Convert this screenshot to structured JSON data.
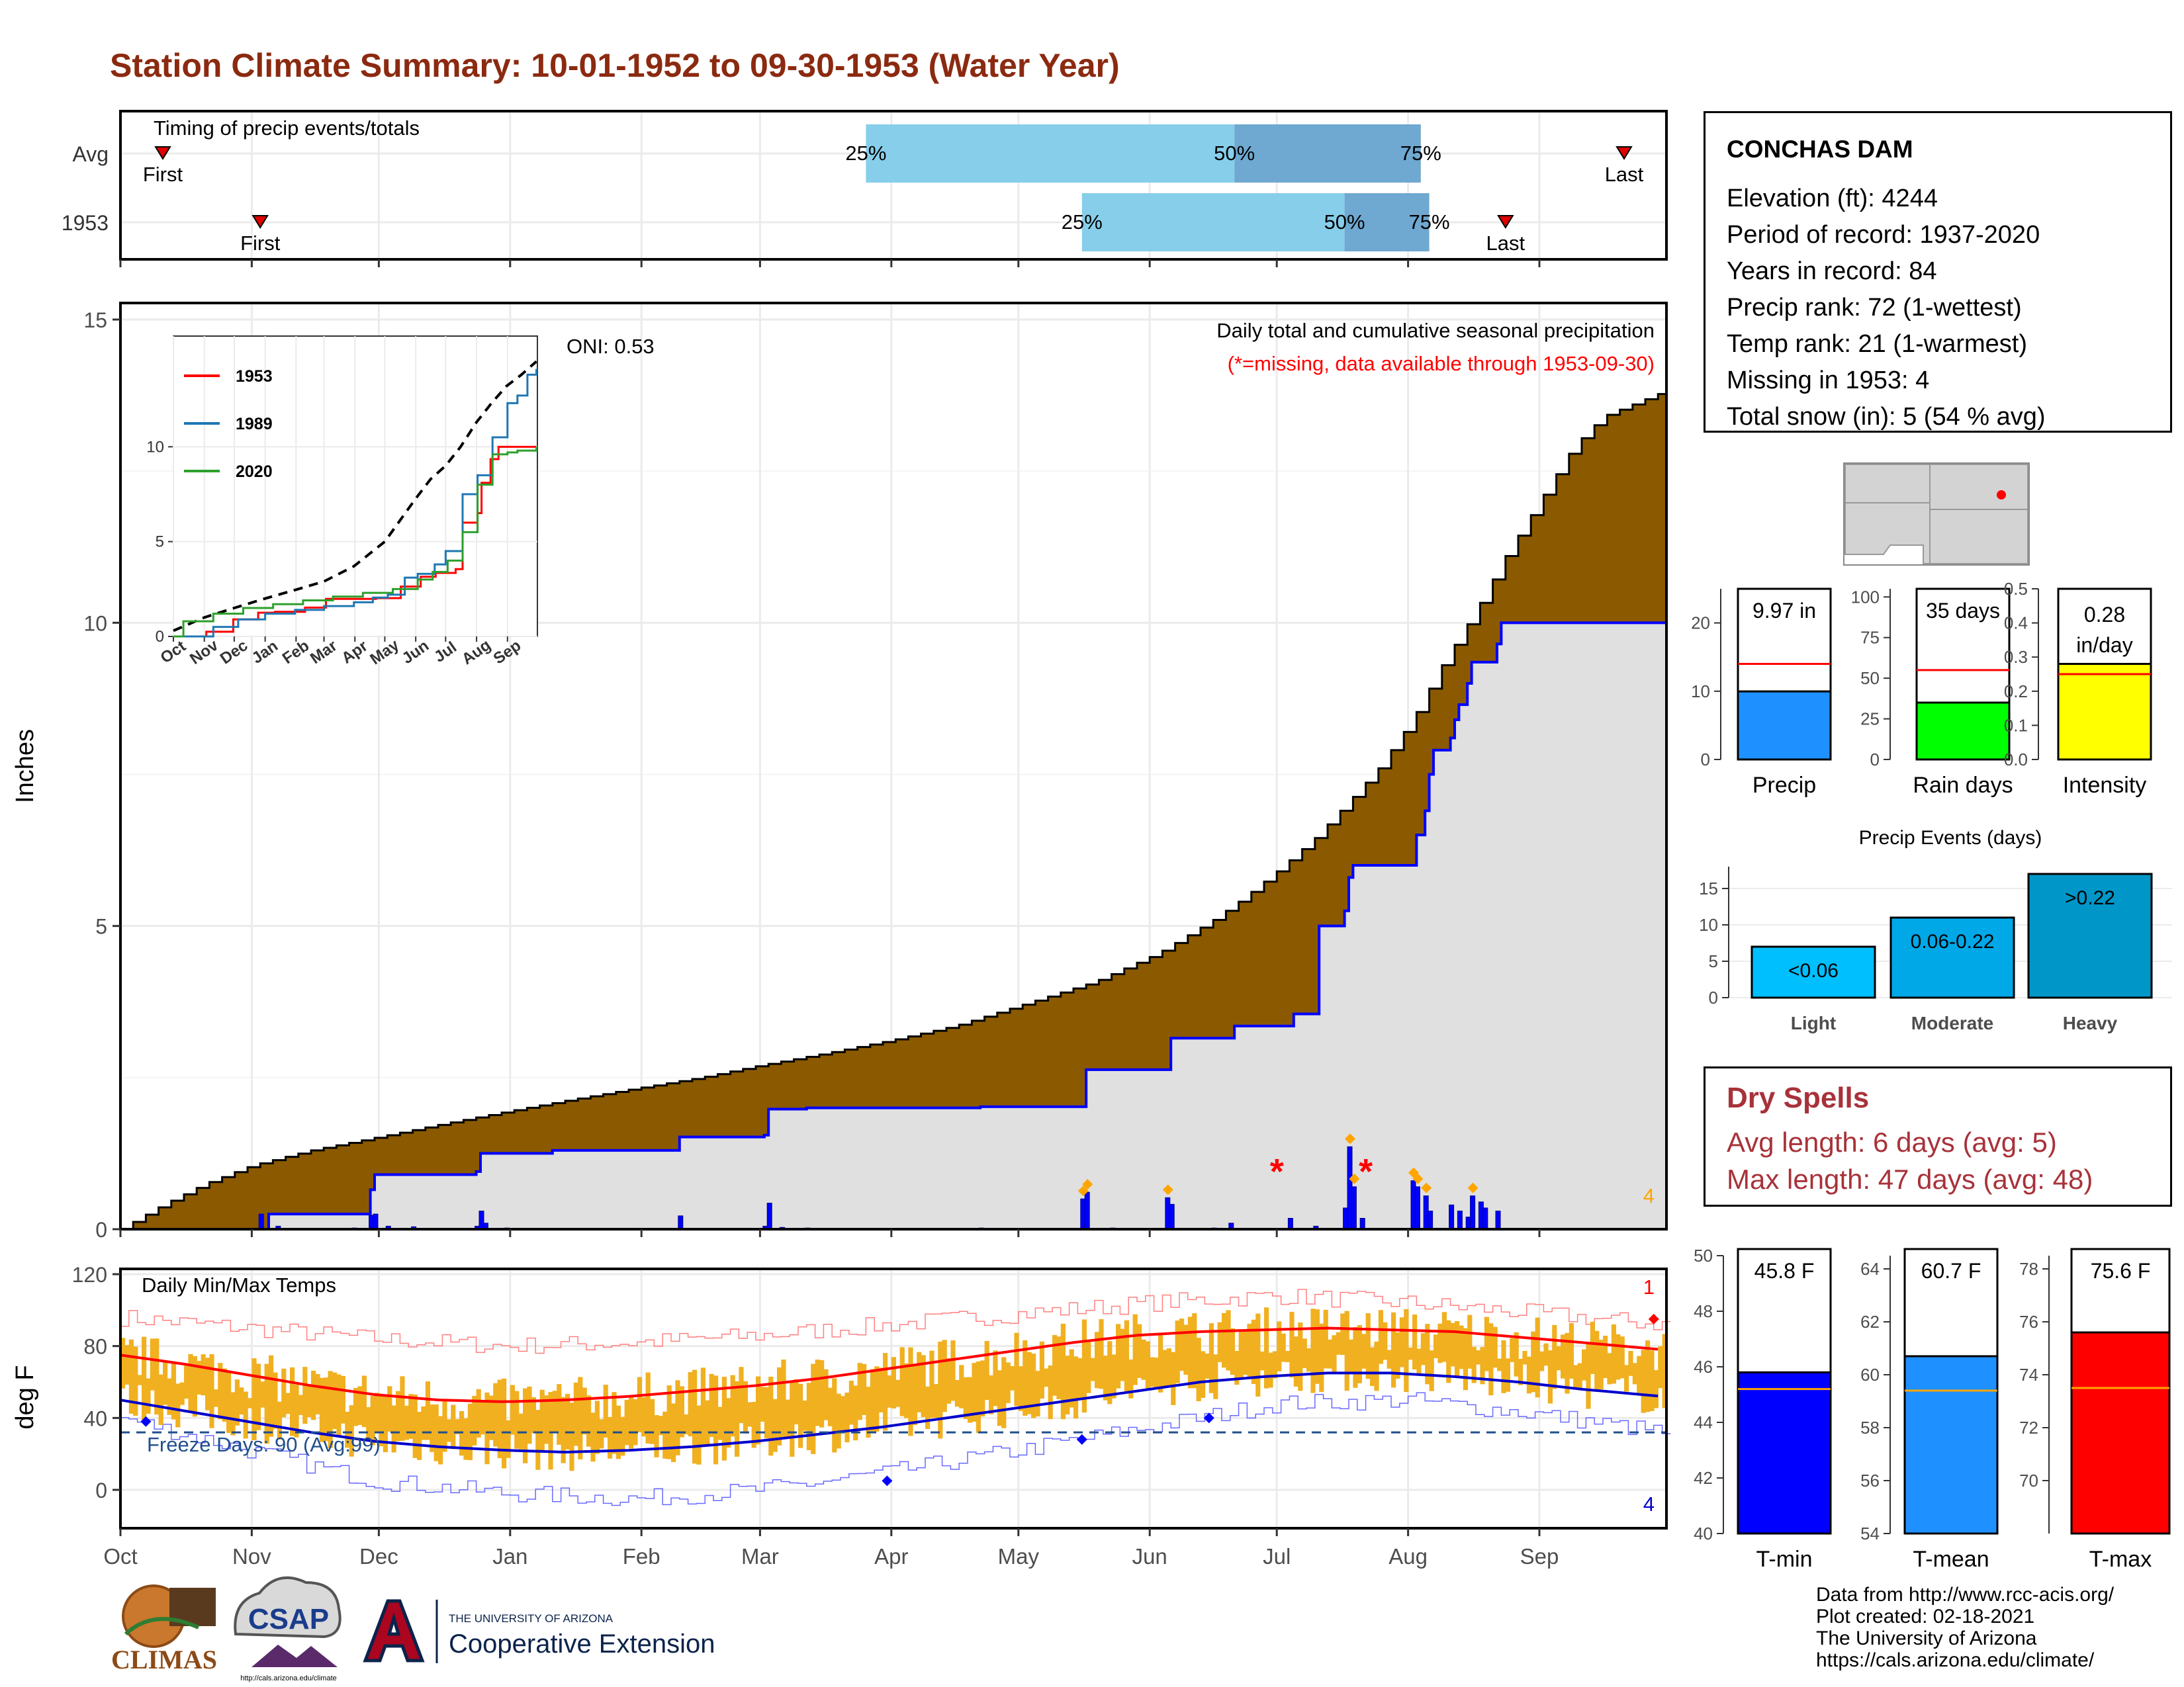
{
  "title": "Station Climate Summary: 10-01-1952 to 09-30-1953 (Water Year)",
  "months": [
    "Oct",
    "Nov",
    "Dec",
    "Jan",
    "Feb",
    "Mar",
    "Apr",
    "May",
    "Jun",
    "Jul",
    "Aug",
    "Sep"
  ],
  "timing": {
    "label": "Timing of precip events/totals",
    "rows": [
      {
        "name": "Avg",
        "first_day": 10,
        "last_day": 355,
        "p25": 176,
        "p50": 263,
        "p75": 307,
        "labels": {
          "first": "First",
          "last": "Last",
          "p25": "25%",
          "p50": "50%",
          "p75": "75%"
        }
      },
      {
        "name": "1953",
        "first_day": 33,
        "last_day": 327,
        "p25": 227,
        "p50": 289,
        "p75": 309,
        "labels": {
          "first": "First",
          "last": "Last",
          "p25": "25%",
          "p50": "50%",
          "p75": "75%"
        }
      }
    ]
  },
  "station": {
    "name": "CONCHAS DAM",
    "lines": [
      "Elevation (ft): 4244",
      "Period of record: 1937-2020",
      "Years in record: 84",
      "Precip rank: 72 (1-wettest)",
      "Temp rank: 21 (1-warmest)",
      "Missing in 1953: 4",
      "Total snow (in): 5 (54 % avg)"
    ]
  },
  "dry_spells": {
    "title": "Dry Spells",
    "avg_length": "Avg length: 6 days (avg: 5)",
    "max_length": "Max length: 47 days (avg: 48)"
  },
  "colors": {
    "title": "#8b2a10",
    "avg_precip": "#8b5a00",
    "obs_precip_fill": "#e0e0e0",
    "obs_precip_line": "#0000ff",
    "quartile_light": "#87ceeb",
    "quartile_dark": "#6fa8d0",
    "temp_bars": "#f0b020",
    "tmax_avg": "#ff0000",
    "tmin_avg": "#0000cc",
    "dry_spells": "#a8323a"
  },
  "chart_data": [
    {
      "id": "precip-main",
      "type": "area",
      "title": "Daily total and cumulative seasonal precipitation",
      "subtitle": "(*=missing, data available through 1953-09-30)",
      "annotation": "ONI: 0.53",
      "corner_count": "4",
      "ylabel": "Inches",
      "ylim": [
        0,
        15
      ],
      "yticks": [
        0,
        5,
        10,
        15
      ],
      "grid": true,
      "series": [
        {
          "name": "average cumulative",
          "x": [
            0,
            10,
            20,
            31,
            45,
            61,
            75,
            92,
            106,
            120,
            137,
            151,
            165,
            181,
            197,
            212,
            230,
            245,
            258,
            265,
            273,
            282,
            290,
            297,
            305,
            312,
            320,
            327,
            335,
            343,
            350,
            364
          ],
          "y": [
            0,
            0.4,
            0.75,
            1.05,
            1.3,
            1.52,
            1.72,
            1.95,
            2.13,
            2.3,
            2.5,
            2.7,
            2.88,
            3.1,
            3.35,
            3.68,
            4.08,
            4.55,
            5.1,
            5.45,
            5.9,
            6.45,
            7.05,
            7.6,
            8.4,
            9.3,
            10.2,
            11.1,
            12.0,
            12.9,
            13.4,
            13.8
          ]
        },
        {
          "name": "1953 cumulative",
          "x": [
            0,
            33,
            35,
            55,
            59,
            60,
            84,
            85,
            101,
            102,
            132,
            152,
            153,
            162,
            203,
            227,
            228,
            247,
            248,
            262,
            263,
            276,
            277,
            282,
            283,
            289,
            290,
            291,
            305,
            306,
            308,
            309,
            310,
            314,
            315,
            316,
            318,
            319,
            325,
            326,
            364
          ],
          "y": [
            0,
            0,
            0.25,
            0.25,
            0.65,
            0.9,
            0.95,
            1.25,
            1.25,
            1.3,
            1.52,
            1.55,
            1.98,
            2.0,
            2.02,
            2.02,
            2.63,
            2.63,
            3.15,
            3.15,
            3.35,
            3.35,
            3.55,
            3.55,
            5.0,
            5.25,
            5.8,
            6.0,
            6.0,
            6.5,
            6.9,
            7.5,
            7.9,
            8.1,
            8.4,
            8.65,
            9.0,
            9.35,
            9.65,
            10.0,
            10.0
          ]
        }
      ],
      "daily_precip": [
        {
          "day": 33,
          "in": 0.25
        },
        {
          "day": 37,
          "in": 0.05
        },
        {
          "day": 55,
          "in": 0.02
        },
        {
          "day": 59,
          "in": 0.23
        },
        {
          "day": 60,
          "in": 0.25
        },
        {
          "day": 63,
          "in": 0.05
        },
        {
          "day": 69,
          "in": 0.04
        },
        {
          "day": 84,
          "in": 0.05
        },
        {
          "day": 85,
          "in": 0.3
        },
        {
          "day": 86,
          "in": 0.1
        },
        {
          "day": 91,
          "in": 0.02
        },
        {
          "day": 132,
          "in": 0.22
        },
        {
          "day": 152,
          "in": 0.05
        },
        {
          "day": 153,
          "in": 0.43
        },
        {
          "day": 156,
          "in": 0.03
        },
        {
          "day": 162,
          "in": 0.02
        },
        {
          "day": 203,
          "in": 0.02
        },
        {
          "day": 227,
          "in": 0.5
        },
        {
          "day": 228,
          "in": 0.61
        },
        {
          "day": 234,
          "in": 0.02
        },
        {
          "day": 247,
          "in": 0.52
        },
        {
          "day": 248,
          "in": 0.41
        },
        {
          "day": 258,
          "in": 0.02
        },
        {
          "day": 262,
          "in": 0.1
        },
        {
          "day": 276,
          "in": 0.18
        },
        {
          "day": 282,
          "in": 0.05
        },
        {
          "day": 289,
          "in": 0.35
        },
        {
          "day": 290,
          "in": 1.36
        },
        {
          "day": 291,
          "in": 0.7
        },
        {
          "day": 293,
          "in": 0.18
        },
        {
          "day": 305,
          "in": 0.8
        },
        {
          "day": 306,
          "in": 0.7
        },
        {
          "day": 308,
          "in": 0.55
        },
        {
          "day": 309,
          "in": 0.3
        },
        {
          "day": 314,
          "in": 0.4
        },
        {
          "day": 316,
          "in": 0.3
        },
        {
          "day": 318,
          "in": 0.2
        },
        {
          "day": 319,
          "in": 0.55
        },
        {
          "day": 321,
          "in": 0.45
        },
        {
          "day": 322,
          "in": 0.35
        },
        {
          "day": 325,
          "in": 0.3
        }
      ],
      "missing_days": [
        273,
        294
      ]
    },
    {
      "id": "precip-inset",
      "type": "line",
      "ylim": [
        0,
        15
      ],
      "yticks": [
        0,
        5,
        10
      ],
      "xticks": [
        "Oct",
        "Nov",
        "Dec",
        "Jan",
        "Feb",
        "Mar",
        "Apr",
        "May",
        "Jun",
        "Jul",
        "Aug",
        "Sep"
      ],
      "series": [
        {
          "name": "average",
          "style": "dashed",
          "color": "#000000",
          "x": [
            0,
            31,
            61,
            92,
            122,
            151,
            181,
            212,
            242,
            258,
            273,
            288,
            304,
            319,
            334,
            349,
            364
          ],
          "y": [
            0.3,
            1.0,
            1.5,
            2.0,
            2.45,
            2.9,
            3.7,
            5.0,
            7.2,
            8.3,
            9.0,
            10.0,
            11.3,
            12.3,
            13.2,
            13.8,
            14.5
          ]
        },
        {
          "name": "1953",
          "color": "#ff0000",
          "x": [
            0,
            33,
            60,
            85,
            102,
            132,
            153,
            203,
            228,
            248,
            263,
            283,
            290,
            305,
            309,
            318,
            326,
            364
          ],
          "y": [
            0,
            0.25,
            0.9,
            1.25,
            1.3,
            1.52,
            1.98,
            2.02,
            2.63,
            3.15,
            3.35,
            3.55,
            6.0,
            6.5,
            8.1,
            9.35,
            10.0,
            10.0
          ]
        },
        {
          "name": "1989",
          "color": "#1f77b4",
          "x": [
            0,
            40,
            65,
            92,
            122,
            151,
            181,
            200,
            215,
            232,
            245,
            262,
            273,
            290,
            305,
            320,
            335,
            345,
            355,
            364
          ],
          "y": [
            0,
            0.5,
            0.9,
            1.2,
            1.4,
            1.6,
            1.8,
            2.05,
            2.2,
            3.1,
            3.3,
            3.8,
            4.5,
            7.5,
            8.5,
            10.5,
            12.3,
            12.7,
            13.8,
            14.1
          ]
        },
        {
          "name": "2020",
          "color": "#2ca02c",
          "x": [
            0,
            10,
            40,
            70,
            100,
            130,
            160,
            190,
            220,
            245,
            260,
            275,
            290,
            305,
            320,
            335,
            345,
            364
          ],
          "y": [
            0,
            0.8,
            1.2,
            1.5,
            1.7,
            1.9,
            2.1,
            2.3,
            2.5,
            3.0,
            3.4,
            4.0,
            5.5,
            8.0,
            9.6,
            9.7,
            9.8,
            10.0
          ]
        }
      ]
    },
    {
      "id": "temps",
      "type": "bar",
      "title": "Daily Min/Max Temps",
      "ylabel": "deg F",
      "ylim": [
        -20,
        120
      ],
      "yticks": [
        0,
        40,
        80,
        120
      ],
      "freeze_label": "Freeze Days: 90 (Avg:99)",
      "freeze_line": 32,
      "top_count": "1",
      "bottom_count": "4",
      "avg_tmax": {
        "x": [
          0,
          15,
          30,
          45,
          60,
          75,
          91,
          105,
          120,
          135,
          150,
          165,
          180,
          195,
          210,
          225,
          240,
          255,
          270,
          285,
          300,
          315,
          330,
          345,
          364
        ],
        "y": [
          75,
          70,
          64,
          58,
          53,
          50,
          49,
          50,
          52,
          55,
          58,
          62,
          67,
          72,
          77,
          82,
          86,
          88,
          89,
          90,
          89,
          88,
          85,
          82,
          78
        ]
      },
      "avg_tmin": {
        "x": [
          0,
          15,
          30,
          45,
          60,
          75,
          91,
          105,
          120,
          135,
          150,
          165,
          180,
          195,
          210,
          225,
          240,
          255,
          270,
          285,
          300,
          315,
          330,
          345,
          364
        ],
        "y": [
          50,
          44,
          38,
          32,
          27,
          24,
          22,
          21,
          22,
          24,
          27,
          31,
          35,
          40,
          45,
          50,
          55,
          60,
          63,
          65,
          65,
          63,
          60,
          56,
          52
        ]
      },
      "record_high": {
        "x": [
          0,
          30,
          60,
          91,
          122,
          151,
          182,
          212,
          243,
          273,
          304,
          335,
          364
        ],
        "y": [
          96,
          90,
          84,
          80,
          82,
          86,
          92,
          98,
          104,
          108,
          104,
          98,
          92
        ]
      },
      "record_low": {
        "x": [
          0,
          30,
          60,
          91,
          122,
          151,
          182,
          212,
          243,
          273,
          304,
          335,
          364
        ],
        "y": [
          40,
          22,
          5,
          -2,
          -5,
          0,
          10,
          22,
          35,
          48,
          50,
          42,
          32
        ]
      }
    },
    {
      "id": "precip-bars",
      "type": "bar",
      "categories": [
        "Precip",
        "Rain days",
        "Intensity"
      ],
      "values": [
        9.97,
        35,
        0.28
      ],
      "averages": [
        14,
        55,
        0.25
      ],
      "labels": [
        "9.97 in",
        "35 days",
        "0.28 in/day"
      ],
      "ylims": [
        [
          0,
          25
        ],
        [
          0,
          105
        ],
        [
          0,
          0.5
        ]
      ],
      "yticks": [
        [
          0,
          10,
          20
        ],
        [
          0,
          25,
          50,
          75,
          100
        ],
        [
          0.0,
          0.1,
          0.2,
          0.3,
          0.4,
          0.5
        ]
      ],
      "colors": [
        "#1e90ff",
        "#00ff00",
        "#ffff00"
      ]
    },
    {
      "id": "precip-events",
      "type": "bar",
      "title": "Precip Events (days)",
      "categories": [
        "Light",
        "Moderate",
        "Heavy"
      ],
      "values": [
        7,
        11,
        17
      ],
      "labels": [
        "<0.06",
        "0.06-0.22",
        ">0.22"
      ],
      "ylim": [
        0,
        18
      ],
      "yticks": [
        0,
        5,
        10,
        15
      ],
      "colors": [
        "#00bfff",
        "#00a8e8",
        "#0096c8"
      ]
    },
    {
      "id": "temp-bars",
      "type": "bar",
      "categories": [
        "T-min",
        "T-mean",
        "T-max"
      ],
      "values": [
        45.8,
        60.7,
        75.6
      ],
      "averages": [
        45.2,
        59.4,
        73.5
      ],
      "labels": [
        "45.8 F",
        "60.7 F",
        "75.6 F"
      ],
      "ylims": [
        [
          40,
          50
        ],
        [
          54,
          64.5
        ],
        [
          68,
          78.5
        ]
      ],
      "yticks": [
        [
          40,
          42,
          44,
          46,
          48,
          50
        ],
        [
          54,
          56,
          58,
          60,
          62,
          64
        ],
        [
          70,
          72,
          74,
          76,
          78
        ]
      ],
      "colors": [
        "#0000ff",
        "#1e90ff",
        "#ff0000"
      ]
    }
  ],
  "credits": [
    "Data from http://www.rcc-acis.org/",
    "Plot created: 02-18-2021",
    "The University of Arizona",
    "https://cals.arizona.edu/climate/"
  ],
  "logos": {
    "climas": "CLIMAS",
    "csap": "CSAP",
    "csap_url": "http://cals.arizona.edu/climate",
    "ua_small": "THE UNIVERSITY OF ARIZONA",
    "ua_big": "Cooperative Extension"
  }
}
